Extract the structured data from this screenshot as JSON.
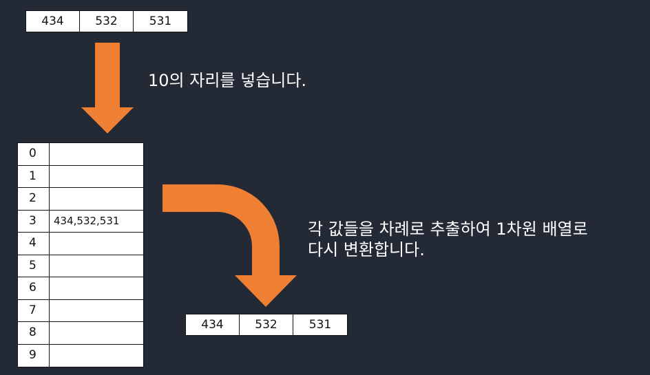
{
  "input_array": [
    "434",
    "532",
    "531"
  ],
  "caption_1": "10의 자리를 넣습니다.",
  "buckets": [
    {
      "index": "0",
      "values": ""
    },
    {
      "index": "1",
      "values": ""
    },
    {
      "index": "2",
      "values": ""
    },
    {
      "index": "3",
      "values": "434,532,531"
    },
    {
      "index": "4",
      "values": ""
    },
    {
      "index": "5",
      "values": ""
    },
    {
      "index": "6",
      "values": ""
    },
    {
      "index": "7",
      "values": ""
    },
    {
      "index": "8",
      "values": ""
    },
    {
      "index": "9",
      "values": ""
    }
  ],
  "caption_2": {
    "line1": "각 값들을 차례로 추출하여 1차원 배열로",
    "line2": "다시 변환합니다."
  },
  "output_array": [
    "434",
    "532",
    "531"
  ],
  "colors": {
    "background": "#232a35",
    "arrow": "#ef7f33",
    "cell_background": "#ffffff"
  }
}
